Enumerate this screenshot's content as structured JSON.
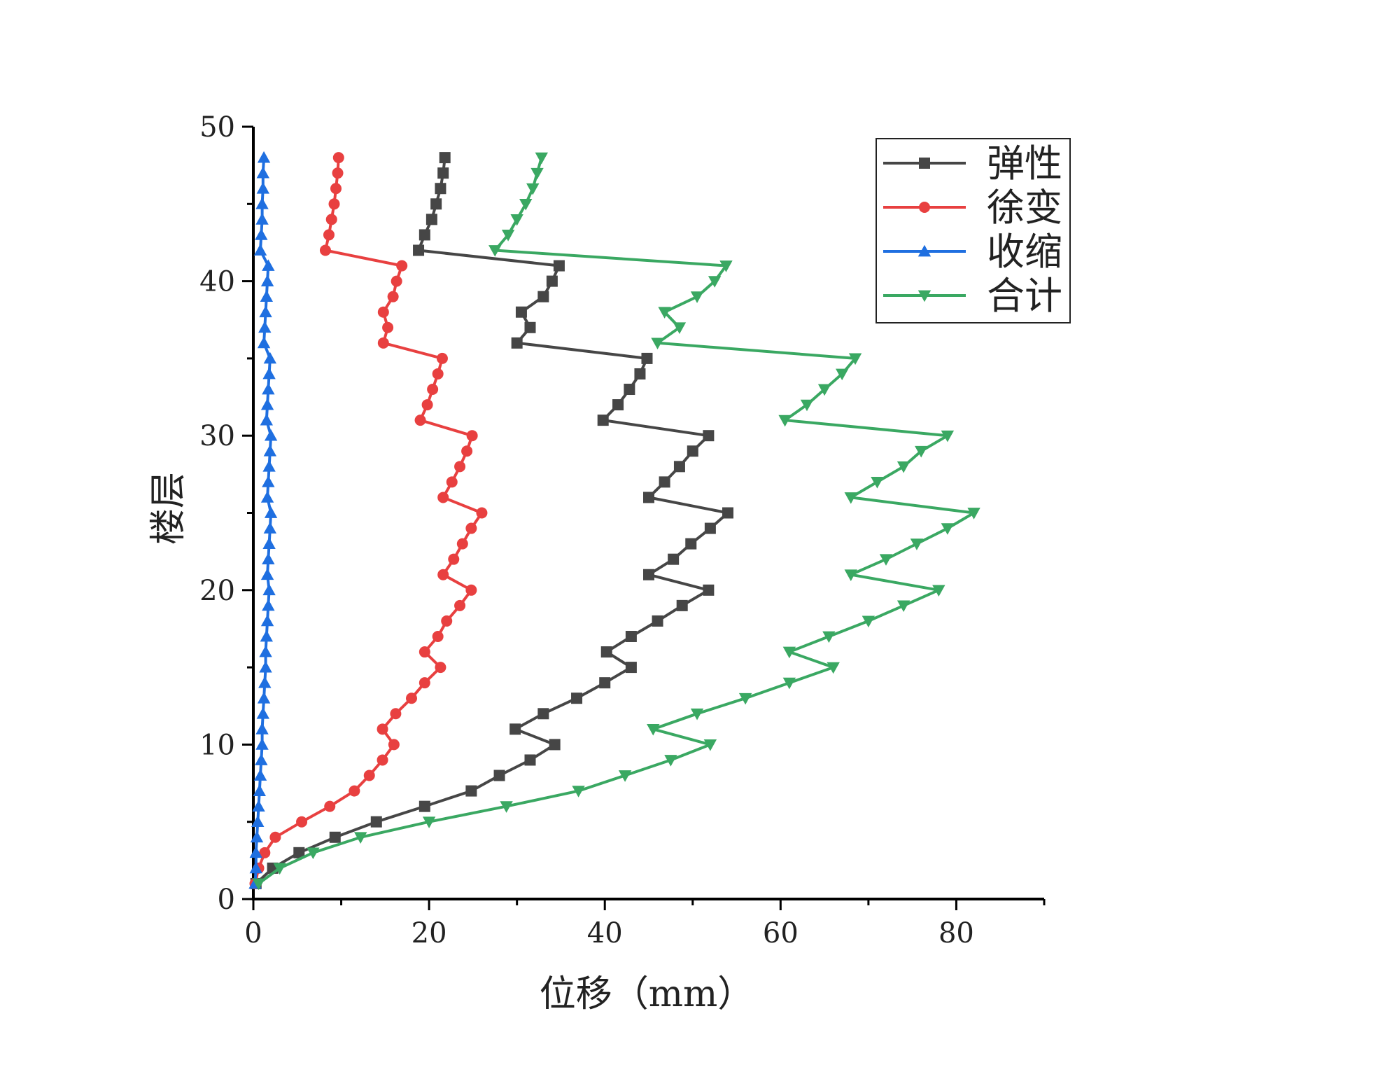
{
  "chart_data": {
    "type": "line",
    "title": "",
    "xlabel": "位移（mm）",
    "ylabel": "楼层",
    "xlim": [
      0,
      90
    ],
    "ylim": [
      0,
      50
    ],
    "x_ticks": [
      0,
      20,
      40,
      60,
      80
    ],
    "y_ticks": [
      0,
      10,
      20,
      30,
      40,
      50
    ],
    "grid": false,
    "legend_position": "top-right",
    "series": [
      {
        "name": "弹性",
        "color": "#464646",
        "marker": "square",
        "points": [
          [
            0.3,
            1
          ],
          [
            2.2,
            2
          ],
          [
            5.2,
            3
          ],
          [
            9.3,
            4
          ],
          [
            14.0,
            5
          ],
          [
            19.5,
            6
          ],
          [
            24.8,
            7
          ],
          [
            28.0,
            8
          ],
          [
            31.5,
            9
          ],
          [
            34.3,
            10
          ],
          [
            29.8,
            11
          ],
          [
            33.0,
            12
          ],
          [
            36.8,
            13
          ],
          [
            40.0,
            14
          ],
          [
            43.0,
            15
          ],
          [
            40.2,
            16
          ],
          [
            43.0,
            17
          ],
          [
            46.0,
            18
          ],
          [
            48.8,
            19
          ],
          [
            51.8,
            20
          ],
          [
            45.0,
            21
          ],
          [
            47.8,
            22
          ],
          [
            49.8,
            23
          ],
          [
            52.0,
            24
          ],
          [
            54.0,
            25
          ],
          [
            45.0,
            26
          ],
          [
            46.8,
            27
          ],
          [
            48.5,
            28
          ],
          [
            50.0,
            29
          ],
          [
            51.8,
            30
          ],
          [
            39.8,
            31
          ],
          [
            41.5,
            32
          ],
          [
            42.8,
            33
          ],
          [
            44.0,
            34
          ],
          [
            44.8,
            35
          ],
          [
            30.0,
            36
          ],
          [
            31.5,
            37
          ],
          [
            30.5,
            38
          ],
          [
            33.0,
            39
          ],
          [
            34.0,
            40
          ],
          [
            34.8,
            41
          ],
          [
            18.8,
            42
          ],
          [
            19.5,
            43
          ],
          [
            20.3,
            44
          ],
          [
            20.8,
            45
          ],
          [
            21.3,
            46
          ],
          [
            21.6,
            47
          ],
          [
            21.8,
            48
          ]
        ]
      },
      {
        "name": "徐变",
        "color": "#e84040",
        "marker": "circle",
        "points": [
          [
            0.2,
            1
          ],
          [
            0.6,
            2
          ],
          [
            1.3,
            3
          ],
          [
            2.5,
            4
          ],
          [
            5.5,
            5
          ],
          [
            8.7,
            6
          ],
          [
            11.5,
            7
          ],
          [
            13.2,
            8
          ],
          [
            14.7,
            9
          ],
          [
            16.0,
            10
          ],
          [
            14.7,
            11
          ],
          [
            16.2,
            12
          ],
          [
            18.0,
            13
          ],
          [
            19.5,
            14
          ],
          [
            21.3,
            15
          ],
          [
            19.5,
            16
          ],
          [
            21.0,
            17
          ],
          [
            22.0,
            18
          ],
          [
            23.5,
            19
          ],
          [
            24.8,
            20
          ],
          [
            21.6,
            21
          ],
          [
            22.8,
            22
          ],
          [
            23.8,
            23
          ],
          [
            24.8,
            24
          ],
          [
            26.0,
            25
          ],
          [
            21.6,
            26
          ],
          [
            22.6,
            27
          ],
          [
            23.5,
            28
          ],
          [
            24.3,
            29
          ],
          [
            24.9,
            30
          ],
          [
            19.0,
            31
          ],
          [
            19.8,
            32
          ],
          [
            20.4,
            33
          ],
          [
            21.0,
            34
          ],
          [
            21.5,
            35
          ],
          [
            14.8,
            36
          ],
          [
            15.3,
            37
          ],
          [
            14.8,
            38
          ],
          [
            15.9,
            39
          ],
          [
            16.3,
            40
          ],
          [
            16.9,
            41
          ],
          [
            8.2,
            42
          ],
          [
            8.6,
            43
          ],
          [
            8.9,
            44
          ],
          [
            9.2,
            45
          ],
          [
            9.4,
            46
          ],
          [
            9.6,
            47
          ],
          [
            9.7,
            48
          ]
        ]
      },
      {
        "name": "收缩",
        "color": "#1f6fe0",
        "marker": "triangle-up",
        "points": [
          [
            0.2,
            1
          ],
          [
            0.3,
            2
          ],
          [
            0.3,
            3
          ],
          [
            0.4,
            4
          ],
          [
            0.5,
            5
          ],
          [
            0.6,
            6
          ],
          [
            0.7,
            7
          ],
          [
            0.8,
            8
          ],
          [
            0.9,
            9
          ],
          [
            1.0,
            10
          ],
          [
            1.0,
            11
          ],
          [
            1.1,
            12
          ],
          [
            1.2,
            13
          ],
          [
            1.3,
            14
          ],
          [
            1.4,
            15
          ],
          [
            1.4,
            16
          ],
          [
            1.5,
            17
          ],
          [
            1.6,
            18
          ],
          [
            1.7,
            19
          ],
          [
            1.8,
            20
          ],
          [
            1.6,
            21
          ],
          [
            1.7,
            22
          ],
          [
            1.8,
            23
          ],
          [
            1.9,
            24
          ],
          [
            2.0,
            25
          ],
          [
            1.6,
            26
          ],
          [
            1.7,
            27
          ],
          [
            1.8,
            28
          ],
          [
            1.9,
            29
          ],
          [
            2.0,
            30
          ],
          [
            1.5,
            31
          ],
          [
            1.6,
            32
          ],
          [
            1.7,
            33
          ],
          [
            1.8,
            34
          ],
          [
            1.9,
            35
          ],
          [
            1.2,
            36
          ],
          [
            1.3,
            37
          ],
          [
            1.4,
            38
          ],
          [
            1.5,
            39
          ],
          [
            1.6,
            40
          ],
          [
            1.7,
            41
          ],
          [
            0.8,
            42
          ],
          [
            0.9,
            43
          ],
          [
            1.0,
            44
          ],
          [
            1.0,
            45
          ],
          [
            1.1,
            46
          ],
          [
            1.1,
            47
          ],
          [
            1.2,
            48
          ]
        ]
      },
      {
        "name": "合计",
        "color": "#3aa862",
        "marker": "triangle-down",
        "points": [
          [
            0.6,
            1
          ],
          [
            3.0,
            2
          ],
          [
            6.8,
            3
          ],
          [
            12.2,
            4
          ],
          [
            20.0,
            5
          ],
          [
            28.8,
            6
          ],
          [
            37.0,
            7
          ],
          [
            42.3,
            8
          ],
          [
            47.5,
            9
          ],
          [
            52.0,
            10
          ],
          [
            45.5,
            11
          ],
          [
            50.5,
            12
          ],
          [
            56.0,
            13
          ],
          [
            61.0,
            14
          ],
          [
            66.0,
            15
          ],
          [
            61.0,
            16
          ],
          [
            65.5,
            17
          ],
          [
            70.0,
            18
          ],
          [
            74.0,
            19
          ],
          [
            78.0,
            20
          ],
          [
            68.0,
            21
          ],
          [
            72.0,
            22
          ],
          [
            75.5,
            23
          ],
          [
            79.0,
            24
          ],
          [
            82.0,
            25
          ],
          [
            68.0,
            26
          ],
          [
            71.0,
            27
          ],
          [
            74.0,
            28
          ],
          [
            76.0,
            29
          ],
          [
            79.0,
            30
          ],
          [
            60.5,
            31
          ],
          [
            63.0,
            32
          ],
          [
            65.0,
            33
          ],
          [
            67.0,
            34
          ],
          [
            68.5,
            35
          ],
          [
            46.0,
            36
          ],
          [
            48.5,
            37
          ],
          [
            46.8,
            38
          ],
          [
            50.5,
            39
          ],
          [
            52.5,
            40
          ],
          [
            53.8,
            41
          ],
          [
            27.5,
            42
          ],
          [
            29.0,
            43
          ],
          [
            30.0,
            44
          ],
          [
            31.0,
            45
          ],
          [
            31.8,
            46
          ],
          [
            32.3,
            47
          ],
          [
            32.8,
            48
          ]
        ]
      }
    ]
  }
}
